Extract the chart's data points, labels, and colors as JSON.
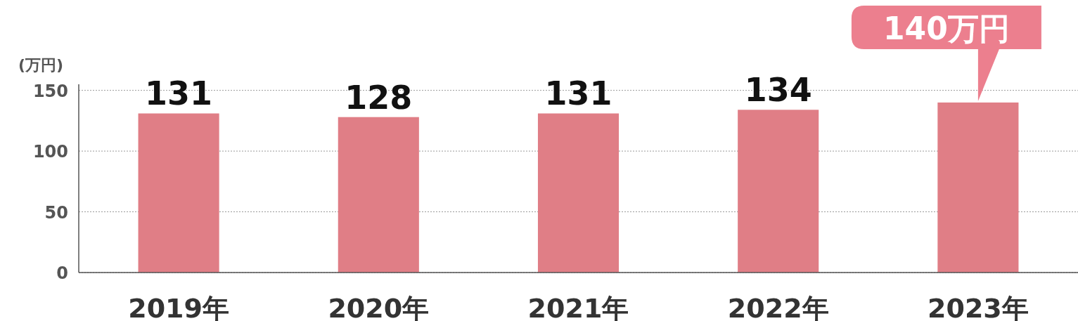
{
  "chart_data": {
    "type": "bar",
    "ylabel": "(万円)",
    "categories": [
      "2019年",
      "2020年",
      "2021年",
      "2022年",
      "2023年"
    ],
    "values": [
      131,
      128,
      131,
      134,
      140
    ],
    "color": "#e07e86",
    "value_labels": [
      "131",
      "128",
      "131",
      "134",
      null
    ],
    "annotations": [
      {
        "text": "140万円",
        "x": "2023年",
        "y": 140
      }
    ],
    "ylim": [
      0,
      155
    ],
    "yticks": [
      0,
      50,
      100,
      150
    ],
    "grid": "y"
  }
}
